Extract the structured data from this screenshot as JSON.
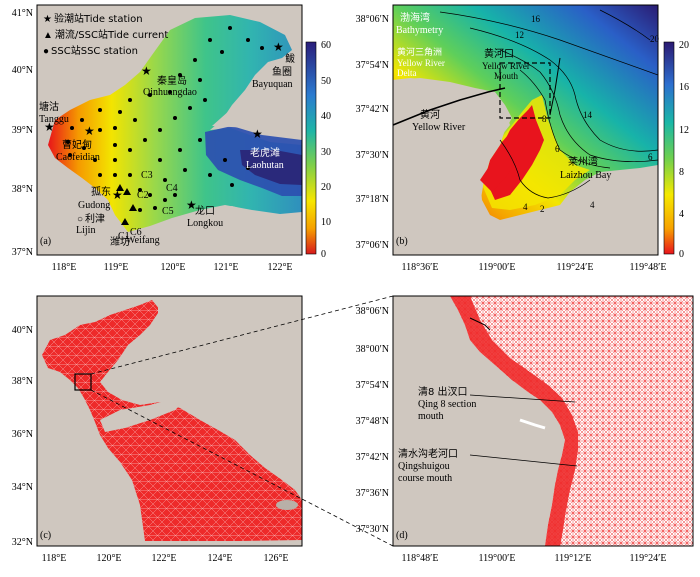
{
  "panel_a": {
    "letter": "(a)",
    "y_ticks": [
      "41°N",
      "40°N",
      "39°N",
      "38°N",
      "37°N"
    ],
    "x_ticks": [
      "118°E",
      "119°E",
      "120°E",
      "121°E",
      "122°E"
    ],
    "legend": [
      {
        "symbol": "★",
        "text": "验潮站Tide station"
      },
      {
        "symbol": "▲",
        "text": "潮流/SSC站Tide current"
      },
      {
        "symbol": "●",
        "text": "SSC站SSC station"
      }
    ],
    "places": [
      {
        "cn": "塘沽",
        "en": "Tanggu"
      },
      {
        "cn": "曹妃甸",
        "en": "Caofeidian"
      },
      {
        "cn": "秦皇岛",
        "en": "Qinhuangdao"
      },
      {
        "cn": "鲅",
        "en": ""
      },
      {
        "cn": "鱼圈",
        "en": "Bayuquan"
      },
      {
        "cn": "老虎滩",
        "en": "Laohutan"
      },
      {
        "cn": "孤东",
        "en": "Gudong"
      },
      {
        "cn": "利津",
        "en": "Lijin"
      },
      {
        "cn": "潍坊",
        "en": "Weifang"
      },
      {
        "cn": "龙口",
        "en": "Longkou"
      }
    ],
    "stations": [
      "C1",
      "C2",
      "C3",
      "C4",
      "C5",
      "C6"
    ],
    "colorbar_ticks": [
      "60",
      "50",
      "40",
      "30",
      "20",
      "10",
      "0"
    ]
  },
  "panel_b": {
    "letter": "(b)",
    "title_cn": "渤海湾",
    "title_en": "Bathymetry",
    "y_ticks": [
      "38°06′N",
      "37°54′N",
      "37°42′N",
      "37°30′N",
      "37°18′N",
      "37°06′N"
    ],
    "x_ticks": [
      "118°36′E",
      "119°00′E",
      "119°24′E",
      "119°48′E"
    ],
    "labels": {
      "delta_cn": "黄河三角洲",
      "delta_en1": "Yellow River",
      "delta_en2": "Delta",
      "mouth_cn": "黄河口",
      "mouth_en1": "Yellow River",
      "mouth_en2": "Mouth",
      "river_cn": "黄河",
      "river_en": "Yellow River",
      "bay_cn": "莱州湾",
      "bay_en": "Laizhou Bay"
    },
    "contours": [
      "16",
      "12",
      "20",
      "14",
      "8",
      "6",
      "4",
      "2",
      "4",
      "6"
    ],
    "colorbar_ticks": [
      "20",
      "16",
      "12",
      "8",
      "4",
      "0"
    ]
  },
  "panel_c": {
    "letter": "(c)",
    "y_ticks": [
      "40°N",
      "38°N",
      "36°N",
      "34°N",
      "32°N"
    ],
    "x_ticks": [
      "118°E",
      "120°E",
      "122°E",
      "124°E",
      "126°E"
    ]
  },
  "panel_d": {
    "letter": "(d)",
    "y_ticks": [
      "38°06′N",
      "38°00′N",
      "37°54′N",
      "37°48′N",
      "37°42′N",
      "37°36′N",
      "37°30′N"
    ],
    "x_ticks": [
      "118°48′E",
      "119°00′E",
      "119°12′E",
      "119°24′E"
    ],
    "labels": {
      "qing8_cn": "清8 出汊口",
      "qing8_en1": "Qing 8 section",
      "qing8_en2": "mouth",
      "qsg_cn": "清水沟老河口",
      "qsg_en1": "Qingshuigou",
      "qsg_en2": "course mouth"
    }
  }
}
